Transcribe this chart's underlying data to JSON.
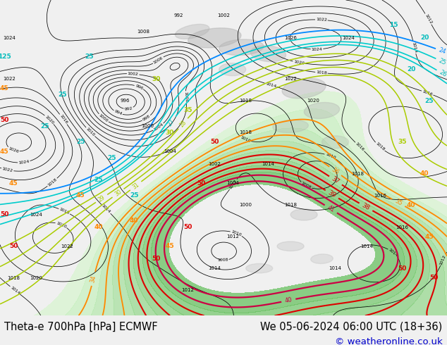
{
  "title_left": "Theta-e 700hPa [hPa] ECMWF",
  "title_right": "We 05-06-2024 06:00 UTC (18+36)",
  "copyright": "© weatheronline.co.uk",
  "bg_color": "#f0f0f0",
  "bottom_bar_color": "#ffffff",
  "title_font_size": 10.5,
  "copyright_color": "#0000cc",
  "copyright_font_size": 9.5
}
